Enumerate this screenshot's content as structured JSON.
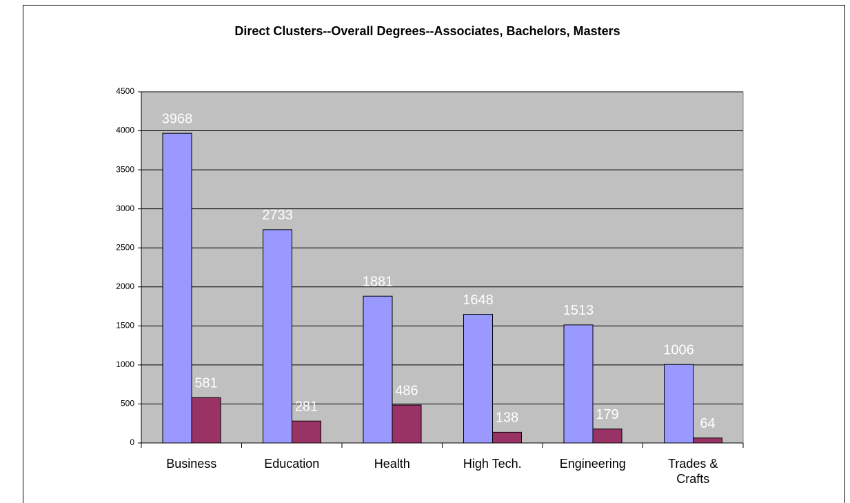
{
  "chart_data": {
    "type": "bar",
    "title": "Direct Clusters--Overall Degrees--Associates, Bachelors, Masters",
    "categories": [
      "Business",
      "Education",
      "Health",
      "High Tech.",
      "Engineering",
      "Trades & Crafts"
    ],
    "series": [
      {
        "color": "#9999ff",
        "values": [
          3968,
          2733,
          1881,
          1648,
          1513,
          1006
        ]
      },
      {
        "color": "#993366",
        "values": [
          581,
          281,
          486,
          138,
          179,
          64
        ]
      }
    ],
    "ylim": [
      0,
      4500
    ],
    "yticks": [
      0,
      500,
      1000,
      1500,
      2000,
      2500,
      3000,
      3500,
      4000,
      4500
    ],
    "grid": true
  }
}
